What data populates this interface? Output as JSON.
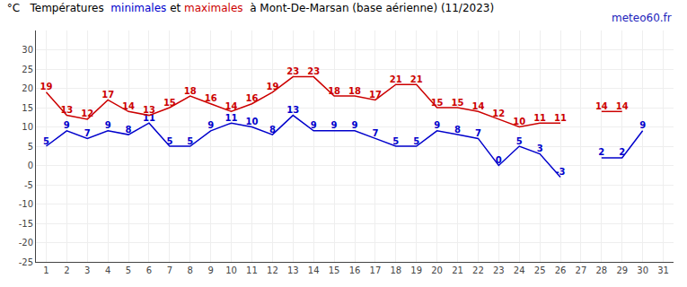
{
  "chart_data": {
    "type": "line",
    "title": "°C   Températures  minimales et maximales  à Mont-De-Marsan (base aérienne) (11/2023)",
    "x": [
      1,
      2,
      3,
      4,
      5,
      6,
      7,
      8,
      9,
      10,
      11,
      12,
      13,
      14,
      15,
      16,
      17,
      18,
      19,
      20,
      21,
      22,
      23,
      24,
      25,
      26,
      27,
      28,
      29,
      30,
      31
    ],
    "series": [
      {
        "name": "minimales",
        "color": "#0000cc",
        "values": [
          5,
          9,
          7,
          9,
          8,
          11,
          5,
          5,
          9,
          11,
          10,
          8,
          13,
          9,
          9,
          9,
          7,
          5,
          5,
          9,
          8,
          7,
          0,
          5,
          3,
          -3,
          null,
          2,
          2,
          9,
          null
        ]
      },
      {
        "name": "maximales",
        "color": "#cc0000",
        "values": [
          19,
          13,
          12,
          17,
          14,
          13,
          15,
          18,
          16,
          14,
          16,
          19,
          23,
          23,
          18,
          18,
          17,
          21,
          21,
          15,
          15,
          14,
          12,
          10,
          11,
          11,
          null,
          14,
          14,
          null,
          null
        ]
      }
    ],
    "xlim": [
      0.5,
      31.5
    ],
    "xticks": [
      1,
      2,
      3,
      4,
      5,
      6,
      7,
      8,
      9,
      10,
      11,
      12,
      13,
      14,
      15,
      16,
      17,
      18,
      19,
      20,
      21,
      22,
      23,
      24,
      25,
      26,
      27,
      28,
      29,
      30,
      31
    ],
    "ylim": [
      -25,
      35
    ],
    "yticks": [
      -25,
      -20,
      -15,
      -10,
      -5,
      0,
      5,
      10,
      15,
      20,
      25,
      30
    ],
    "grid": true,
    "data_labels": true,
    "annotations": [
      {
        "text": "meteo60.fr",
        "color": "#2222bb"
      }
    ]
  }
}
